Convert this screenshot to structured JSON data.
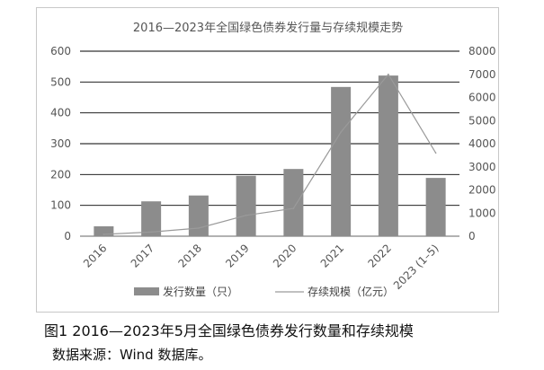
{
  "chart_data": {
    "type": "bar",
    "title": "2016—2023年全国绿色债券发行量与存续规模走势",
    "categories": [
      "2016",
      "2017",
      "2018",
      "2019",
      "2020",
      "2021",
      "2022",
      "2023 (1–5)"
    ],
    "series": [
      {
        "name": "发行数量（只）",
        "type": "bar",
        "axis": "left",
        "color": "#8c8c8c",
        "values": [
          32,
          113,
          132,
          196,
          218,
          484,
          521,
          189
        ]
      },
      {
        "name": "存续规模（亿元）",
        "type": "line",
        "axis": "right",
        "color": "#9a9a9a",
        "values": [
          80,
          180,
          350,
          900,
          1200,
          4500,
          7000,
          3600
        ]
      }
    ],
    "y_left": {
      "min": 0,
      "max": 600,
      "ticks": [
        0,
        100,
        200,
        300,
        400,
        500,
        600
      ]
    },
    "y_right": {
      "min": 0,
      "max": 8000,
      "ticks": [
        0,
        1000,
        2000,
        3000,
        4000,
        5000,
        6000,
        7000,
        8000
      ]
    },
    "grid": "horizontal",
    "legend_position": "bottom"
  },
  "caption": "图1  2016—2023年5月全国绿色债券发行数量和存续规模",
  "source": "数据来源：Wind 数据库。"
}
